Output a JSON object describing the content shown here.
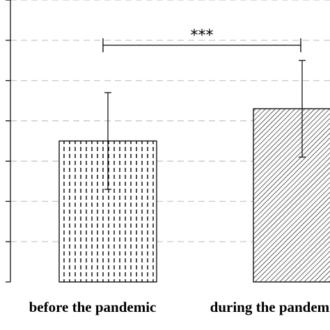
{
  "chart_data": {
    "type": "bar",
    "title": "",
    "xlabel": "",
    "ylabel": "",
    "ylim": [
      0,
      7
    ],
    "grid": true,
    "categories": [
      "before the pandemic",
      "during the pandemic"
    ],
    "series": [
      {
        "values": [
          3.5,
          4.3
        ],
        "error": [
          1.2,
          1.2
        ],
        "patterns": [
          "vertical-dashes",
          "diagonal-hatch"
        ]
      }
    ],
    "significance": {
      "label": "***",
      "between": [
        0,
        1
      ]
    },
    "colors": {
      "bar_stroke": "#000000",
      "bar_fill": "#ffffff",
      "grid": "#c8c8c8"
    }
  }
}
